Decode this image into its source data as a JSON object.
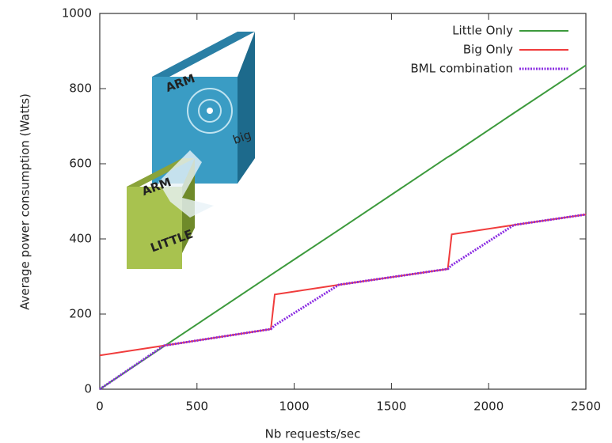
{
  "chart_data": {
    "type": "line",
    "xlabel": "Nb requests/sec",
    "ylabel": "Average power consumption (Watts)",
    "x": [
      0,
      330,
      880,
      900,
      1230,
      1790,
      1810,
      2130,
      2500
    ],
    "series": [
      {
        "name": "Little Only",
        "color": "#3c9a3c",
        "style": "solid",
        "values": [
          0,
          114,
          304,
          311,
          424,
          618,
          624,
          735,
          862
        ]
      },
      {
        "name": "Big Only",
        "color": "#f03c3c",
        "style": "solid",
        "values": [
          90,
          116,
          160,
          252,
          278,
          320,
          412,
          437,
          465
        ]
      },
      {
        "name": "BML combination",
        "color": "#8a2be2",
        "style": "dotted",
        "values": [
          0,
          116,
          160,
          170,
          278,
          320,
          330,
          437,
          465
        ]
      }
    ],
    "xlim": [
      0,
      2500
    ],
    "xticks": [
      0,
      500,
      1000,
      1500,
      2000,
      2500
    ],
    "ylim": [
      0,
      1000
    ],
    "yticks": [
      0,
      200,
      400,
      600,
      800,
      1000
    ],
    "legend": "upper right",
    "annotations": [
      "ARM",
      "big",
      "ARM",
      "LITTLE"
    ]
  }
}
